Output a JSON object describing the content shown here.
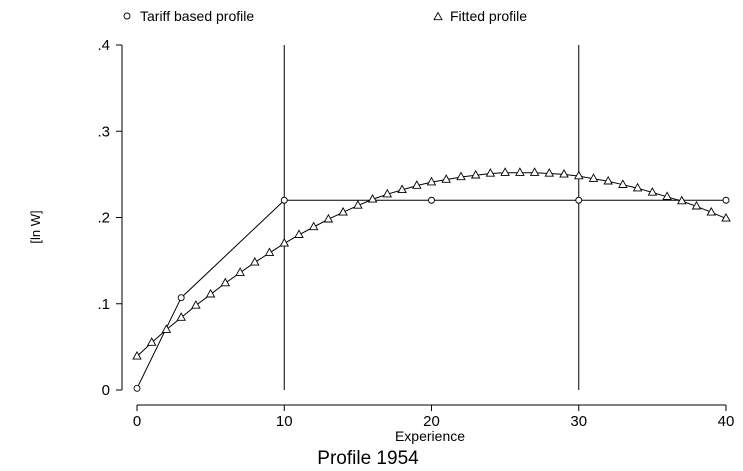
{
  "chart_data": {
    "type": "line",
    "title": "Profile 1954",
    "xlabel": "Experience",
    "ylabel": "[ln W]",
    "xlim": [
      0,
      40
    ],
    "ylim": [
      0,
      0.4
    ],
    "x_ticks": [
      0,
      10,
      20,
      30,
      40
    ],
    "x_tick_labels": [
      "0",
      "10",
      "20",
      "30",
      "40"
    ],
    "y_ticks": [
      0,
      0.1,
      0.2,
      0.3,
      0.4
    ],
    "y_tick_labels": [
      "0",
      ".1",
      ".2",
      ".3",
      ".4"
    ],
    "reference_lines_x": [
      10,
      30
    ],
    "grid": false,
    "legend_position": "top",
    "series": [
      {
        "name": "Tariff based profile",
        "marker": "circle",
        "connect": true,
        "points": [
          [
            0,
            0.002
          ],
          [
            3,
            0.107
          ],
          [
            10,
            0.22
          ],
          [
            40,
            0.22
          ]
        ],
        "marked": [
          [
            0,
            0.002
          ],
          [
            3,
            0.107
          ],
          [
            10,
            0.22
          ],
          [
            20,
            0.22
          ],
          [
            30,
            0.22
          ],
          [
            40,
            0.22
          ]
        ]
      },
      {
        "name": "Fitted profile",
        "marker": "triangle",
        "connect": true,
        "x": [
          0,
          1,
          2,
          3,
          4,
          5,
          6,
          7,
          8,
          9,
          10,
          11,
          12,
          13,
          14,
          15,
          16,
          17,
          18,
          19,
          20,
          21,
          22,
          23,
          24,
          25,
          26,
          27,
          28,
          29,
          30,
          31,
          32,
          33,
          34,
          35,
          36,
          37,
          38,
          39,
          40
        ],
        "y": [
          0.039,
          0.055,
          0.07,
          0.084,
          0.098,
          0.111,
          0.124,
          0.136,
          0.148,
          0.159,
          0.17,
          0.18,
          0.189,
          0.198,
          0.206,
          0.214,
          0.221,
          0.227,
          0.232,
          0.237,
          0.241,
          0.244,
          0.247,
          0.249,
          0.251,
          0.252,
          0.252,
          0.252,
          0.251,
          0.25,
          0.248,
          0.245,
          0.242,
          0.238,
          0.234,
          0.229,
          0.224,
          0.219,
          0.213,
          0.206,
          0.199
        ]
      }
    ]
  }
}
